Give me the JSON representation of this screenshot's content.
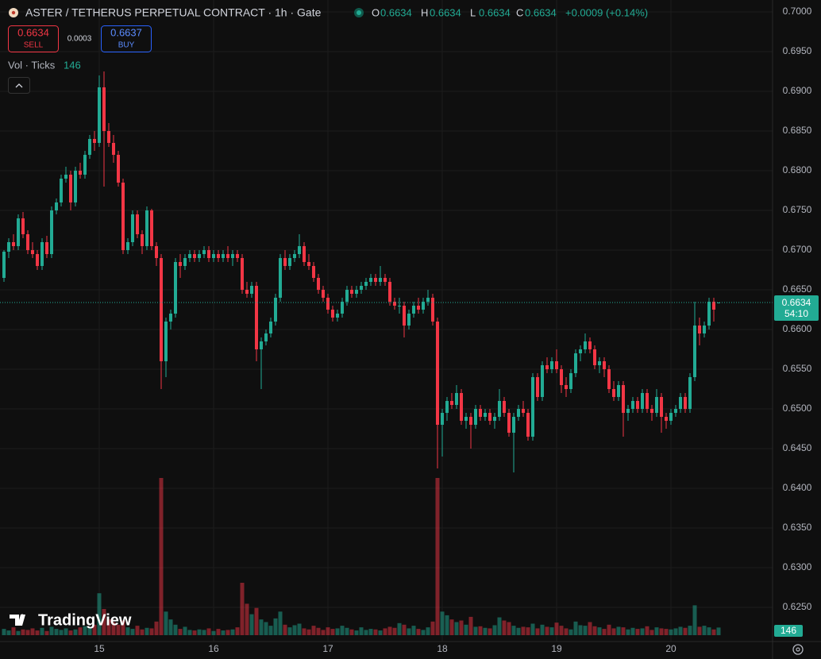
{
  "header": {
    "symbol_title": "ASTER / TETHERUS PERPETUAL CONTRACT · 1h · Gate",
    "ohlc_labels": [
      "O",
      "H",
      "L",
      "C"
    ],
    "ohlc_values": [
      0.6634,
      0.6634,
      0.6634,
      0.6634
    ],
    "change": "+0.0009 (+0.14%)"
  },
  "trade": {
    "sell_price": 0.6634,
    "sell_label": "SELL",
    "spread": 0.0003,
    "buy_price": 0.6637,
    "buy_label": "BUY"
  },
  "indicator": {
    "label": "Vol · Ticks",
    "value": 146
  },
  "branding": "TradingView",
  "chart_data": {
    "type": "candlestick",
    "up_color": "#22ab94",
    "down_color": "#f23645",
    "grid": true,
    "ylim": [
      0.6207,
      0.7015
    ],
    "yticks": [
      {
        "value": 0.7,
        "label": "0.7000"
      },
      {
        "value": 0.695,
        "label": "0.6950"
      },
      {
        "value": 0.69,
        "label": "0.6900"
      },
      {
        "value": 0.685,
        "label": "0.6850"
      },
      {
        "value": 0.68,
        "label": "0.6800"
      },
      {
        "value": 0.675,
        "label": "0.6750"
      },
      {
        "value": 0.67,
        "label": "0.6700"
      },
      {
        "value": 0.665,
        "label": "0.6650"
      },
      {
        "value": 0.66,
        "label": "0.6600"
      },
      {
        "value": 0.655,
        "label": "0.6550"
      },
      {
        "value": 0.65,
        "label": "0.6500"
      },
      {
        "value": 0.645,
        "label": "0.6450"
      },
      {
        "value": 0.64,
        "label": "0.6400"
      },
      {
        "value": 0.635,
        "label": "0.6350"
      },
      {
        "value": 0.63,
        "label": "0.6300"
      },
      {
        "value": 0.625,
        "label": "0.6250"
      }
    ],
    "last_price": 0.6634,
    "countdown": "54:10",
    "categories": [
      null,
      null,
      null,
      null,
      null,
      null,
      null,
      null,
      null,
      null,
      null,
      null,
      null,
      null,
      null,
      null,
      null,
      null,
      null,
      null,
      "15",
      null,
      null,
      null,
      null,
      null,
      null,
      null,
      null,
      null,
      null,
      null,
      null,
      null,
      null,
      null,
      null,
      null,
      null,
      null,
      null,
      null,
      null,
      null,
      "16",
      null,
      null,
      null,
      null,
      null,
      null,
      null,
      null,
      null,
      null,
      null,
      null,
      null,
      null,
      null,
      null,
      null,
      null,
      null,
      null,
      null,
      null,
      null,
      "17",
      null,
      null,
      null,
      null,
      null,
      null,
      null,
      null,
      null,
      null,
      null,
      null,
      null,
      null,
      null,
      null,
      null,
      null,
      null,
      null,
      null,
      null,
      null,
      "18",
      null,
      null,
      null,
      null,
      null,
      null,
      null,
      null,
      null,
      null,
      null,
      null,
      null,
      null,
      null,
      null,
      null,
      null,
      null,
      null,
      null,
      null,
      null,
      "19",
      null,
      null,
      null,
      null,
      null,
      null,
      null,
      null,
      null,
      null,
      null,
      null,
      null,
      null,
      null,
      null,
      null,
      null,
      null,
      null,
      null,
      null,
      null,
      "20",
      null,
      null,
      null,
      null,
      null,
      null,
      null,
      null,
      null,
      null
    ],
    "ohlc": [
      [
        0.6665,
        0.67,
        0.666,
        0.6698
      ],
      [
        0.6698,
        0.6715,
        0.669,
        0.671
      ],
      [
        0.671,
        0.672,
        0.67,
        0.6705
      ],
      [
        0.6705,
        0.6745,
        0.67,
        0.674
      ],
      [
        0.674,
        0.6748,
        0.6715,
        0.672
      ],
      [
        0.672,
        0.6725,
        0.6695,
        0.67
      ],
      [
        0.67,
        0.671,
        0.669,
        0.6695
      ],
      [
        0.6695,
        0.67,
        0.6675,
        0.668
      ],
      [
        0.668,
        0.6715,
        0.6675,
        0.671
      ],
      [
        0.671,
        0.6718,
        0.669,
        0.6695
      ],
      [
        0.6695,
        0.6755,
        0.669,
        0.675
      ],
      [
        0.675,
        0.6765,
        0.6745,
        0.676
      ],
      [
        0.676,
        0.6795,
        0.6755,
        0.679
      ],
      [
        0.679,
        0.6805,
        0.6785,
        0.6795
      ],
      [
        0.6795,
        0.68,
        0.675,
        0.676
      ],
      [
        0.676,
        0.6805,
        0.6755,
        0.68
      ],
      [
        0.68,
        0.681,
        0.679,
        0.6795
      ],
      [
        0.6795,
        0.6825,
        0.679,
        0.682
      ],
      [
        0.682,
        0.6845,
        0.6815,
        0.684
      ],
      [
        0.684,
        0.685,
        0.6825,
        0.6835
      ],
      [
        0.6835,
        0.692,
        0.683,
        0.6905
      ],
      [
        0.6905,
        0.6925,
        0.678,
        0.685
      ],
      [
        0.685,
        0.686,
        0.683,
        0.6835
      ],
      [
        0.6835,
        0.6845,
        0.681,
        0.682
      ],
      [
        0.682,
        0.6825,
        0.678,
        0.6785
      ],
      [
        0.6785,
        0.679,
        0.6695,
        0.67
      ],
      [
        0.67,
        0.6715,
        0.6695,
        0.671
      ],
      [
        0.671,
        0.675,
        0.6705,
        0.6745
      ],
      [
        0.6745,
        0.675,
        0.6715,
        0.672
      ],
      [
        0.672,
        0.6725,
        0.6695,
        0.6705
      ],
      [
        0.6705,
        0.6755,
        0.67,
        0.675
      ],
      [
        0.675,
        0.6752,
        0.67,
        0.6705
      ],
      [
        0.6705,
        0.671,
        0.668,
        0.669
      ],
      [
        0.669,
        0.6695,
        0.6525,
        0.656
      ],
      [
        0.656,
        0.6615,
        0.654,
        0.661
      ],
      [
        0.661,
        0.6625,
        0.66,
        0.662
      ],
      [
        0.662,
        0.669,
        0.6615,
        0.6685
      ],
      [
        0.6685,
        0.6695,
        0.6665,
        0.668
      ],
      [
        0.668,
        0.6695,
        0.6675,
        0.669
      ],
      [
        0.669,
        0.67,
        0.6685,
        0.6695
      ],
      [
        0.6695,
        0.67,
        0.6685,
        0.669
      ],
      [
        0.669,
        0.67,
        0.6685,
        0.6695
      ],
      [
        0.6695,
        0.6705,
        0.669,
        0.67
      ],
      [
        0.67,
        0.6705,
        0.6685,
        0.669
      ],
      [
        0.669,
        0.67,
        0.6685,
        0.6695
      ],
      [
        0.6695,
        0.67,
        0.6685,
        0.669
      ],
      [
        0.669,
        0.67,
        0.6685,
        0.6695
      ],
      [
        0.6695,
        0.6705,
        0.6685,
        0.669
      ],
      [
        0.669,
        0.67,
        0.668,
        0.6695
      ],
      [
        0.6695,
        0.67,
        0.6685,
        0.669
      ],
      [
        0.669,
        0.6695,
        0.6645,
        0.665
      ],
      [
        0.665,
        0.666,
        0.664,
        0.6645
      ],
      [
        0.6645,
        0.666,
        0.664,
        0.6655
      ],
      [
        0.6655,
        0.666,
        0.656,
        0.6575
      ],
      [
        0.6575,
        0.659,
        0.6525,
        0.6585
      ],
      [
        0.6585,
        0.66,
        0.658,
        0.6595
      ],
      [
        0.6595,
        0.6615,
        0.659,
        0.661
      ],
      [
        0.661,
        0.6645,
        0.6605,
        0.664
      ],
      [
        0.664,
        0.6695,
        0.6635,
        0.669
      ],
      [
        0.669,
        0.67,
        0.6675,
        0.668
      ],
      [
        0.668,
        0.6695,
        0.6675,
        0.669
      ],
      [
        0.669,
        0.67,
        0.6685,
        0.6695
      ],
      [
        0.6695,
        0.672,
        0.669,
        0.6705
      ],
      [
        0.6705,
        0.671,
        0.668,
        0.6685
      ],
      [
        0.6685,
        0.6695,
        0.6675,
        0.668
      ],
      [
        0.668,
        0.6685,
        0.666,
        0.6665
      ],
      [
        0.6665,
        0.667,
        0.6645,
        0.665
      ],
      [
        0.665,
        0.6655,
        0.6635,
        0.664
      ],
      [
        0.664,
        0.6645,
        0.662,
        0.6625
      ],
      [
        0.6625,
        0.663,
        0.661,
        0.6615
      ],
      [
        0.6615,
        0.6625,
        0.661,
        0.662
      ],
      [
        0.662,
        0.664,
        0.6615,
        0.6635
      ],
      [
        0.6635,
        0.6655,
        0.663,
        0.665
      ],
      [
        0.665,
        0.6655,
        0.664,
        0.6645
      ],
      [
        0.6645,
        0.6655,
        0.664,
        0.665
      ],
      [
        0.665,
        0.666,
        0.6645,
        0.6655
      ],
      [
        0.6655,
        0.6665,
        0.665,
        0.666
      ],
      [
        0.666,
        0.667,
        0.6655,
        0.6665
      ],
      [
        0.6665,
        0.667,
        0.6655,
        0.666
      ],
      [
        0.666,
        0.668,
        0.6655,
        0.6665
      ],
      [
        0.6665,
        0.667,
        0.6655,
        0.666
      ],
      [
        0.666,
        0.6665,
        0.663,
        0.6635
      ],
      [
        0.6635,
        0.664,
        0.6625,
        0.663
      ],
      [
        0.663,
        0.664,
        0.662,
        0.663
      ],
      [
        0.663,
        0.6635,
        0.659,
        0.6605
      ],
      [
        0.6605,
        0.6625,
        0.66,
        0.662
      ],
      [
        0.662,
        0.6635,
        0.6615,
        0.663
      ],
      [
        0.663,
        0.664,
        0.662,
        0.6625
      ],
      [
        0.6625,
        0.664,
        0.662,
        0.6635
      ],
      [
        0.6635,
        0.665,
        0.663,
        0.664
      ],
      [
        0.664,
        0.6645,
        0.6605,
        0.661
      ],
      [
        0.661,
        0.6615,
        0.6425,
        0.648
      ],
      [
        0.648,
        0.65,
        0.644,
        0.6495
      ],
      [
        0.6495,
        0.6515,
        0.6485,
        0.651
      ],
      [
        0.651,
        0.652,
        0.65,
        0.6505
      ],
      [
        0.6505,
        0.653,
        0.65,
        0.652
      ],
      [
        0.652,
        0.6525,
        0.648,
        0.6485
      ],
      [
        0.6485,
        0.6495,
        0.6475,
        0.649
      ],
      [
        0.649,
        0.6495,
        0.645,
        0.648
      ],
      [
        0.648,
        0.6505,
        0.6475,
        0.65
      ],
      [
        0.65,
        0.6505,
        0.6485,
        0.649
      ],
      [
        0.649,
        0.65,
        0.6485,
        0.6495
      ],
      [
        0.6495,
        0.65,
        0.648,
        0.6485
      ],
      [
        0.6485,
        0.6495,
        0.6475,
        0.649
      ],
      [
        0.649,
        0.6525,
        0.6485,
        0.651
      ],
      [
        0.651,
        0.6515,
        0.649,
        0.6495
      ],
      [
        0.6495,
        0.65,
        0.6465,
        0.647
      ],
      [
        0.647,
        0.6495,
        0.642,
        0.649
      ],
      [
        0.649,
        0.6505,
        0.6485,
        0.65
      ],
      [
        0.65,
        0.651,
        0.649,
        0.6495
      ],
      [
        0.6495,
        0.65,
        0.646,
        0.6465
      ],
      [
        0.6465,
        0.6545,
        0.646,
        0.654
      ],
      [
        0.654,
        0.6545,
        0.651,
        0.6515
      ],
      [
        0.6515,
        0.656,
        0.651,
        0.6555
      ],
      [
        0.6555,
        0.6565,
        0.6545,
        0.655
      ],
      [
        0.655,
        0.6565,
        0.6545,
        0.656
      ],
      [
        0.656,
        0.6575,
        0.6545,
        0.655
      ],
      [
        0.655,
        0.6555,
        0.652,
        0.653
      ],
      [
        0.653,
        0.654,
        0.6515,
        0.6525
      ],
      [
        0.6525,
        0.655,
        0.652,
        0.6545
      ],
      [
        0.6545,
        0.6575,
        0.654,
        0.657
      ],
      [
        0.657,
        0.658,
        0.656,
        0.6575
      ],
      [
        0.6575,
        0.6595,
        0.657,
        0.6585
      ],
      [
        0.6585,
        0.659,
        0.657,
        0.6575
      ],
      [
        0.6575,
        0.658,
        0.655,
        0.6555
      ],
      [
        0.6555,
        0.6565,
        0.6545,
        0.656
      ],
      [
        0.656,
        0.6565,
        0.654,
        0.655
      ],
      [
        0.655,
        0.6555,
        0.652,
        0.6525
      ],
      [
        0.6525,
        0.6535,
        0.651,
        0.6515
      ],
      [
        0.6515,
        0.6535,
        0.651,
        0.653
      ],
      [
        0.653,
        0.6535,
        0.6465,
        0.6495
      ],
      [
        0.6495,
        0.6505,
        0.6485,
        0.65
      ],
      [
        0.65,
        0.6515,
        0.6495,
        0.651
      ],
      [
        0.651,
        0.6515,
        0.6495,
        0.65
      ],
      [
        0.65,
        0.6525,
        0.6495,
        0.652
      ],
      [
        0.652,
        0.6525,
        0.6495,
        0.65
      ],
      [
        0.65,
        0.6505,
        0.6485,
        0.6495
      ],
      [
        0.6495,
        0.6525,
        0.649,
        0.6515
      ],
      [
        0.6515,
        0.652,
        0.647,
        0.649
      ],
      [
        0.649,
        0.6495,
        0.6475,
        0.6485
      ],
      [
        0.6485,
        0.65,
        0.648,
        0.6495
      ],
      [
        0.6495,
        0.6505,
        0.649,
        0.65
      ],
      [
        0.65,
        0.652,
        0.6495,
        0.6515
      ],
      [
        0.6515,
        0.652,
        0.6495,
        0.65
      ],
      [
        0.65,
        0.6545,
        0.6495,
        0.654
      ],
      [
        0.654,
        0.6635,
        0.6535,
        0.6605
      ],
      [
        0.6605,
        0.6615,
        0.658,
        0.6595
      ],
      [
        0.6595,
        0.661,
        0.659,
        0.6605
      ],
      [
        0.6605,
        0.664,
        0.66,
        0.6635
      ],
      [
        0.6635,
        0.664,
        0.661,
        0.6625
      ],
      [
        0.6634,
        0.6634,
        0.6634,
        0.6634
      ]
    ],
    "volume": [
      120,
      90,
      150,
      80,
      110,
      100,
      130,
      90,
      140,
      80,
      160,
      120,
      100,
      130,
      90,
      110,
      150,
      170,
      140,
      200,
      800,
      500,
      300,
      250,
      200,
      280,
      150,
      120,
      180,
      110,
      140,
      130,
      260,
      3000,
      450,
      300,
      200,
      120,
      160,
      100,
      90,
      110,
      100,
      130,
      80,
      120,
      90,
      100,
      110,
      150,
      1000,
      600,
      400,
      520,
      300,
      250,
      180,
      320,
      450,
      200,
      150,
      190,
      220,
      130,
      110,
      180,
      140,
      100,
      150,
      120,
      130,
      180,
      140,
      110,
      90,
      150,
      100,
      120,
      110,
      90,
      130,
      160,
      140,
      230,
      200,
      130,
      180,
      120,
      100,
      150,
      260,
      3000,
      450,
      380,
      300,
      250,
      280,
      200,
      350,
      160,
      170,
      140,
      130,
      190,
      340,
      280,
      250,
      180,
      140,
      160,
      150,
      220,
      130,
      200,
      160,
      150,
      240,
      180,
      130,
      110,
      260,
      190,
      180,
      250,
      170,
      150,
      120,
      200,
      130,
      160,
      150,
      110,
      140,
      120,
      130,
      170,
      100,
      150,
      130,
      120,
      110,
      130,
      160,
      140,
      180,
      570,
      160,
      180,
      150,
      110,
      146
    ]
  }
}
